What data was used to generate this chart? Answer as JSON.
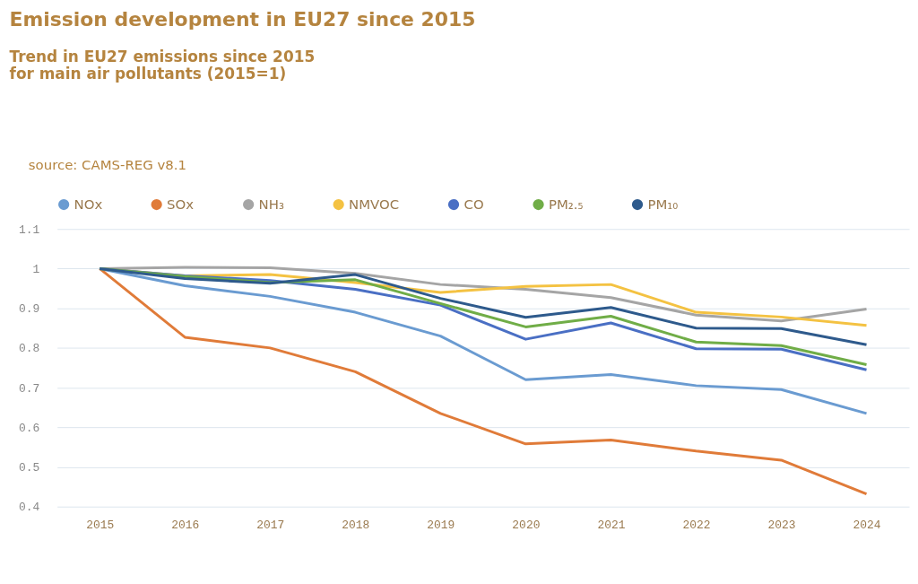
{
  "chart_data": {
    "type": "line",
    "title": "Emission development in EU27 since 2015",
    "subtitle": "Trend in EU27 emissions since 2015\nfor main air pollutants (2015=1)",
    "annotations": [
      "source: CAMS-REG v8.1"
    ],
    "categories": [
      "2015",
      "2016",
      "2017",
      "2018",
      "2019",
      "2020",
      "2021",
      "2022",
      "2023",
      "2024"
    ],
    "series": [
      {
        "name": "NOx",
        "color": "#6a9bd1",
        "values": [
          1,
          0.957,
          0.93,
          0.89,
          0.83,
          0.72,
          0.733,
          0.705,
          0.695,
          0.635
        ]
      },
      {
        "name": "SOx",
        "color": "#e07b39",
        "values": [
          1,
          0.827,
          0.8,
          0.74,
          0.635,
          0.558,
          0.568,
          0.54,
          0.517,
          0.432
        ]
      },
      {
        "name": "NH₃",
        "color": "#a5a5a5",
        "values": [
          1,
          1.003,
          1.002,
          0.988,
          0.96,
          0.948,
          0.927,
          0.883,
          0.868,
          0.898
        ]
      },
      {
        "name": "NMVOC",
        "color": "#f4c242",
        "values": [
          1,
          0.982,
          0.985,
          0.965,
          0.94,
          0.955,
          0.96,
          0.89,
          0.878,
          0.857
        ]
      },
      {
        "name": "CO",
        "color": "#4a6fc4",
        "values": [
          1,
          0.982,
          0.97,
          0.948,
          0.908,
          0.822,
          0.863,
          0.798,
          0.797,
          0.745
        ]
      },
      {
        "name": "PM₂.₅",
        "color": "#70ad47",
        "values": [
          1,
          0.98,
          0.965,
          0.972,
          0.912,
          0.853,
          0.88,
          0.815,
          0.806,
          0.758
        ]
      },
      {
        "name": "PM₁₀",
        "color": "#2e5a8c",
        "values": [
          1,
          0.975,
          0.963,
          0.985,
          0.925,
          0.877,
          0.902,
          0.85,
          0.849,
          0.808
        ]
      }
    ],
    "ylim": [
      0.4,
      1.1
    ],
    "yticks": [
      0.4,
      0.5,
      0.6,
      0.7,
      0.8,
      0.9,
      {
        "value": 1,
        "label": "1"
      },
      1.1
    ],
    "grid": "y",
    "legend": "top",
    "marker": "none",
    "line_style": "solid"
  }
}
